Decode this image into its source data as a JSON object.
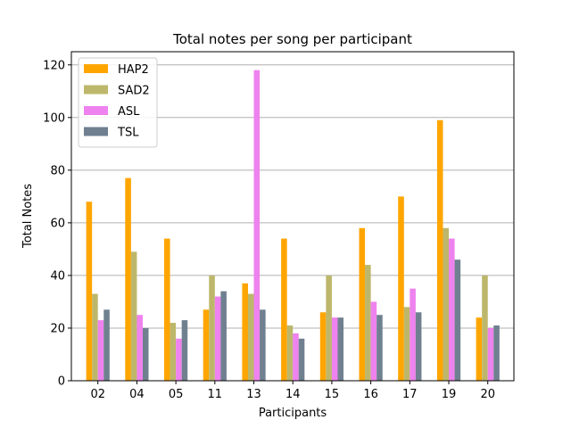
{
  "chart_data": {
    "type": "bar",
    "title": "Total notes per song per participant",
    "xlabel": "Participants",
    "ylabel": "Total Notes",
    "categories": [
      "02",
      "04",
      "05",
      "11",
      "13",
      "14",
      "15",
      "16",
      "17",
      "19",
      "20"
    ],
    "series": [
      {
        "name": "HAP2",
        "color": "#FFA500",
        "values": [
          68,
          77,
          54,
          27,
          37,
          54,
          26,
          58,
          70,
          99,
          24
        ]
      },
      {
        "name": "SAD2",
        "color": "#BDB76B",
        "values": [
          33,
          49,
          22,
          40,
          33,
          21,
          40,
          44,
          28,
          58,
          40
        ]
      },
      {
        "name": "ASL",
        "color": "#EE82EE",
        "values": [
          23,
          25,
          16,
          32,
          118,
          18,
          24,
          30,
          35,
          54,
          20
        ]
      },
      {
        "name": "TSL",
        "color": "#708090",
        "values": [
          27,
          20,
          23,
          34,
          27,
          16,
          24,
          25,
          26,
          46,
          21
        ]
      }
    ],
    "ylim": [
      0,
      125
    ],
    "yticks": [
      0,
      20,
      40,
      60,
      80,
      100,
      120
    ],
    "grid": "y",
    "legend": "top-left"
  }
}
